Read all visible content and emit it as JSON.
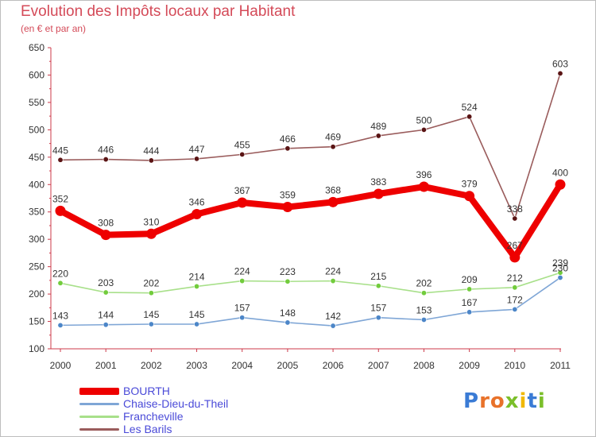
{
  "header": {
    "title": "Evolution des Impôts locaux par Habitant",
    "subtitle": "(en € et par an)"
  },
  "logo": {
    "text": "Proxiti",
    "colors": [
      "#3a7bd5",
      "#e8722a",
      "#e8722a",
      "#7bbf2a",
      "#f0b800",
      "#3a7bd5",
      "#7bbf2a"
    ]
  },
  "chart_data": {
    "type": "line",
    "title": "Evolution des Impôts locaux par Habitant",
    "subtitle": "(en € et par an)",
    "xlabel": "",
    "ylabel": "",
    "categories": [
      "2000",
      "2001",
      "2002",
      "2003",
      "2004",
      "2005",
      "2006",
      "2007",
      "2008",
      "2009",
      "2010",
      "2011"
    ],
    "ylim": [
      100,
      650
    ],
    "yticks": [
      100,
      150,
      200,
      250,
      300,
      350,
      400,
      450,
      500,
      550,
      600,
      650
    ],
    "grid": false,
    "legend_position": "bottom-left",
    "series": [
      {
        "name": "BOURTH",
        "color": "#ee0000",
        "dot": "#ee0000",
        "label_color": "#333333",
        "emphasis": true,
        "values": [
          352,
          308,
          310,
          346,
          367,
          359,
          368,
          383,
          396,
          379,
          267,
          400
        ]
      },
      {
        "name": "Chaise-Dieu-du-Theil",
        "color": "#7fa6d6",
        "dot": "#4c86c8",
        "label_color": "#333333",
        "emphasis": false,
        "values": [
          143,
          144,
          145,
          145,
          157,
          148,
          142,
          157,
          153,
          167,
          172,
          230
        ]
      },
      {
        "name": "Francheville",
        "color": "#a8e08a",
        "dot": "#72cc3c",
        "label_color": "#333333",
        "emphasis": false,
        "values": [
          220,
          203,
          202,
          214,
          224,
          223,
          224,
          215,
          202,
          209,
          212,
          239
        ]
      },
      {
        "name": "Les Barils",
        "color": "#9a5c5c",
        "dot": "#5a1414",
        "label_color": "#333333",
        "emphasis": false,
        "values": [
          445,
          446,
          444,
          447,
          455,
          466,
          469,
          489,
          500,
          524,
          338,
          603
        ]
      }
    ]
  }
}
